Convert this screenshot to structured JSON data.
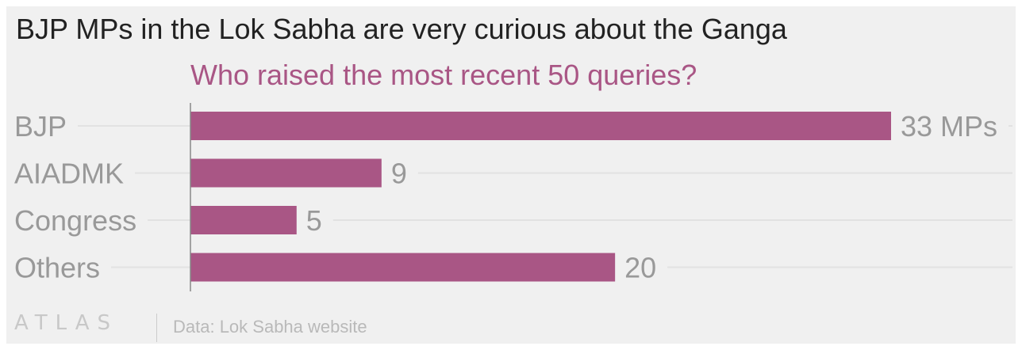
{
  "title": "BJP MPs in the Lok Sabha are very curious about the Ganga",
  "subtitle": "Who raised the most recent 50 queries?",
  "footer": {
    "logo": "ATLAS",
    "source": "Data: Lok Sabha website"
  },
  "colors": {
    "bar": "#a95685",
    "subtitle": "#a95685",
    "label": "#999999",
    "grid": "#e2e2e2",
    "axis": "#888888"
  },
  "chart_data": {
    "type": "bar",
    "orientation": "horizontal",
    "categories": [
      "BJP",
      "AIADMK",
      "Congress",
      "Others"
    ],
    "values": [
      33,
      9,
      5,
      20
    ],
    "value_labels": [
      "33 MPs",
      "9",
      "5",
      "20"
    ],
    "xlim": [
      0,
      33
    ],
    "grid": true,
    "legend": "none"
  }
}
